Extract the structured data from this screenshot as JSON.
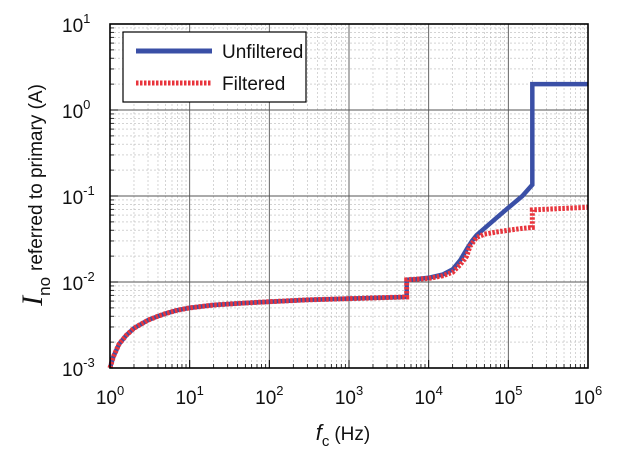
{
  "chart_data": {
    "type": "line",
    "xscale": "log",
    "yscale": "log",
    "xlim": [
      1,
      1000000
    ],
    "ylim": [
      0.001,
      10
    ],
    "x_ticks": [
      {
        "base": "10",
        "exp": "0",
        "value": 1
      },
      {
        "base": "10",
        "exp": "1",
        "value": 10
      },
      {
        "base": "10",
        "exp": "2",
        "value": 100
      },
      {
        "base": "10",
        "exp": "3",
        "value": 1000
      },
      {
        "base": "10",
        "exp": "4",
        "value": 10000
      },
      {
        "base": "10",
        "exp": "5",
        "value": 100000
      },
      {
        "base": "10",
        "exp": "6",
        "value": 1000000
      }
    ],
    "y_ticks": [
      {
        "base": "10",
        "exp": "-3",
        "value": 0.001
      },
      {
        "base": "10",
        "exp": "-2",
        "value": 0.01
      },
      {
        "base": "10",
        "exp": "-1",
        "value": 0.1
      },
      {
        "base": "10",
        "exp": "0",
        "value": 1
      },
      {
        "base": "10",
        "exp": "1",
        "value": 10
      }
    ],
    "xlabel": {
      "symbol": "f",
      "subscript": "c",
      "unit": "(Hz)"
    },
    "ylabel": {
      "symbol": "I",
      "subscript": "no",
      "text": "referred to primary (A)"
    },
    "grid": "major and minor",
    "legend_position": "top-left",
    "series": [
      {
        "name": "Unfiltered",
        "color": "#3a4fa6",
        "style": "solid",
        "x": [
          1.0,
          1.1,
          1.3,
          1.6,
          2,
          3,
          4,
          5,
          7,
          10,
          20,
          50,
          100,
          300,
          1000,
          3000,
          5300,
          5300,
          7000,
          10000,
          15000,
          20000,
          25000,
          30000,
          35000,
          40000,
          50000,
          70000,
          100000,
          150000,
          200000,
          200000,
          1000000
        ],
        "y": [
          0.001,
          0.00135,
          0.0019,
          0.0024,
          0.0029,
          0.0036,
          0.004,
          0.0043,
          0.0047,
          0.005,
          0.0054,
          0.0057,
          0.0059,
          0.0062,
          0.0064,
          0.0066,
          0.0067,
          0.0106,
          0.0108,
          0.0112,
          0.0122,
          0.014,
          0.018,
          0.024,
          0.03,
          0.035,
          0.042,
          0.055,
          0.073,
          0.1,
          0.135,
          2.0,
          2.0
        ]
      },
      {
        "name": "Filtered",
        "color": "#e8343c",
        "style": "dotted",
        "x": [
          1.0,
          1.1,
          1.3,
          1.6,
          2,
          3,
          4,
          5,
          7,
          10,
          20,
          50,
          100,
          300,
          1000,
          3000,
          5300,
          5300,
          7000,
          10000,
          15000,
          20000,
          25000,
          30000,
          33000,
          40000,
          50000,
          70000,
          100000,
          150000,
          200000,
          200000,
          1000000
        ],
        "y": [
          0.001,
          0.00135,
          0.0019,
          0.0024,
          0.0029,
          0.0036,
          0.004,
          0.0043,
          0.0047,
          0.005,
          0.0054,
          0.0057,
          0.0059,
          0.0062,
          0.0064,
          0.0066,
          0.0067,
          0.0106,
          0.0108,
          0.011,
          0.0118,
          0.013,
          0.016,
          0.02,
          0.026,
          0.033,
          0.036,
          0.038,
          0.04,
          0.042,
          0.043,
          0.069,
          0.074
        ]
      }
    ]
  }
}
